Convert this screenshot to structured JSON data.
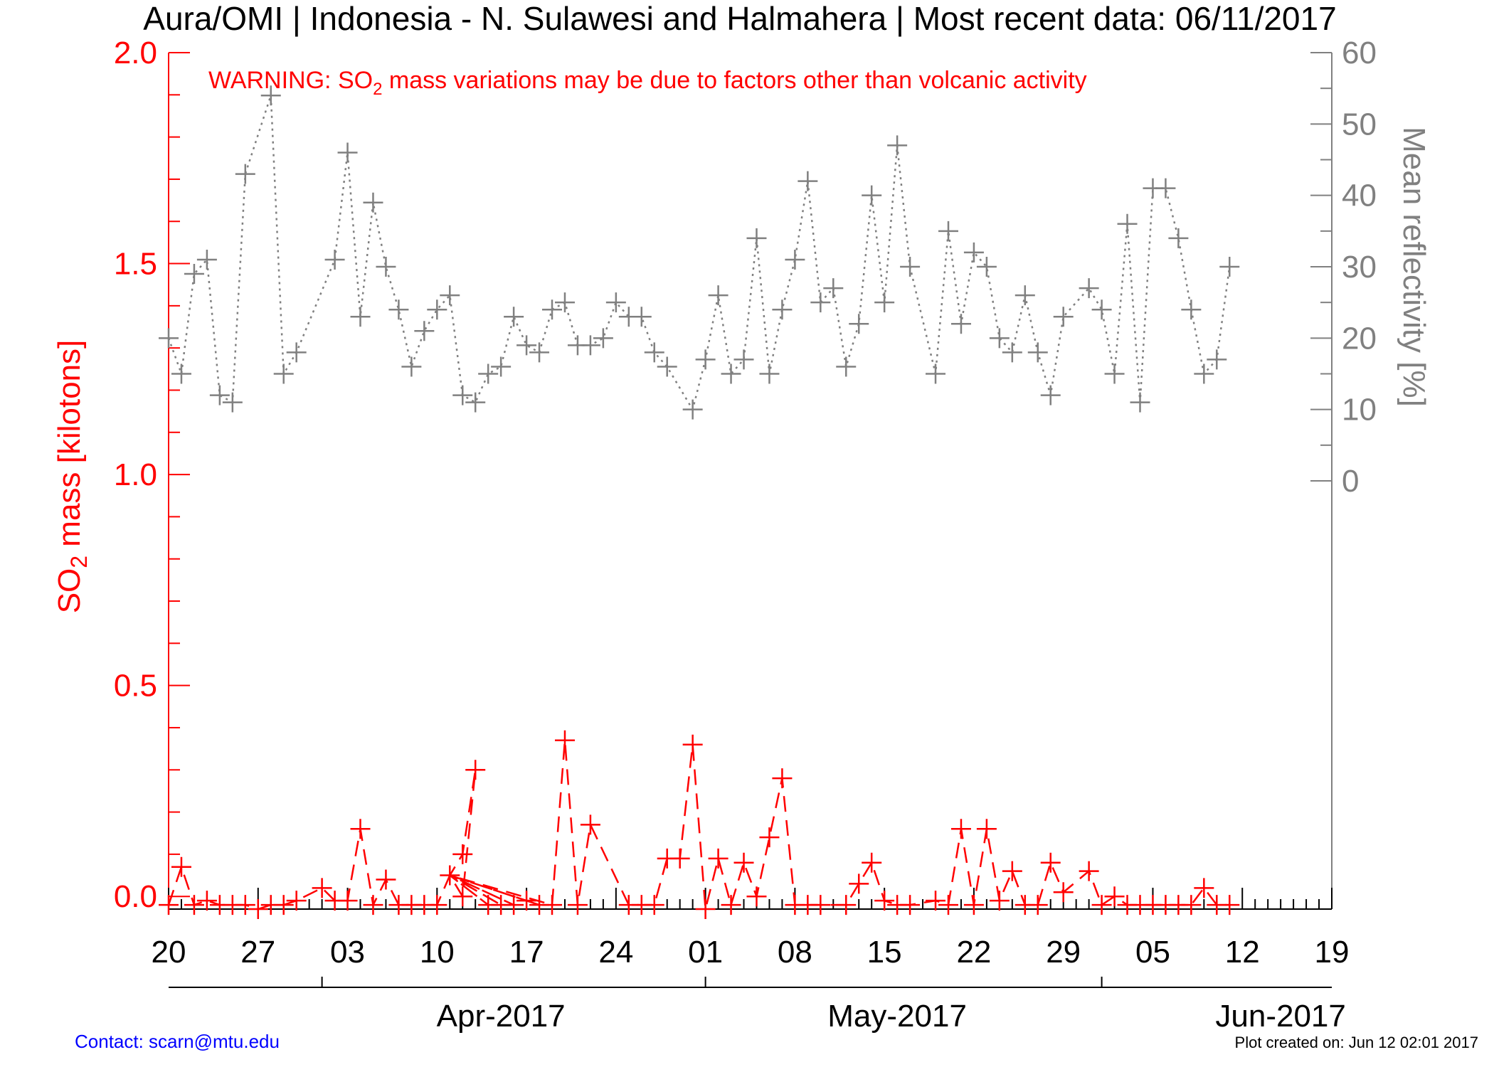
{
  "header": {
    "title": "Aura/OMI | Indonesia - N. Sulawesi and Halmahera | Most recent data: 06/11/2017"
  },
  "warning": {
    "prefix": "WARNING: SO",
    "subscript": "2",
    "suffix": " mass variations may be due to factors other than volcanic activity"
  },
  "footer": {
    "contact": "Contact: scarn@mtu.edu",
    "created": "Plot created on: Jun 12 02:01 2017"
  },
  "colors": {
    "so2": "#ff0000",
    "reflectivity": "#808080",
    "axis": "#000000",
    "contact": "#0000ff"
  },
  "chart_data": {
    "type": "line",
    "x_domain": [
      "2017-03-20",
      "2017-06-19"
    ],
    "x_ticks": [
      "20",
      "27",
      "03",
      "10",
      "17",
      "24",
      "01",
      "08",
      "15",
      "22",
      "29",
      "05",
      "12",
      "19"
    ],
    "x_tick_dates": [
      "2017-03-20",
      "2017-03-27",
      "2017-04-03",
      "2017-04-10",
      "2017-04-17",
      "2017-04-24",
      "2017-05-01",
      "2017-05-08",
      "2017-05-15",
      "2017-05-22",
      "2017-05-29",
      "2017-06-05",
      "2017-06-12",
      "2017-06-19"
    ],
    "months": [
      {
        "label": "Apr-2017",
        "start": "2017-04-01",
        "center": "2017-04-15"
      },
      {
        "label": "May-2017",
        "start": "2017-05-01",
        "center": "2017-05-16"
      },
      {
        "label": "Jun-2017",
        "start": "2017-06-01",
        "center": "2017-06-15"
      }
    ],
    "y_left": {
      "label_prefix": "SO",
      "label_subscript": "2",
      "label_suffix": " mass [kilotons]",
      "range": [
        -0.03,
        2.0
      ],
      "ticks": [
        "0.0",
        "0.5",
        "1.0",
        "1.5",
        "2.0"
      ],
      "tick_values": [
        0.0,
        0.5,
        1.0,
        1.5,
        2.0
      ],
      "minor_step": 0.1
    },
    "y_right": {
      "label": "Mean reflectivity [%]",
      "range": [
        -60,
        60
      ],
      "ticks": [
        "0",
        "10",
        "20",
        "30",
        "40",
        "50",
        "60"
      ],
      "tick_values": [
        0,
        10,
        20,
        30,
        40,
        50,
        60
      ]
    },
    "series": [
      {
        "name": "SO2 mass",
        "axis": "left",
        "style": "dashed",
        "points": [
          [
            "2017-03-20",
            -0.02
          ],
          [
            "2017-03-21",
            0.07
          ],
          [
            "2017-03-22",
            -0.02
          ],
          [
            "2017-03-23",
            -0.01
          ],
          [
            "2017-03-24",
            -0.02
          ],
          [
            "2017-03-25",
            -0.02
          ],
          [
            "2017-03-26",
            -0.02
          ],
          [
            "2017-03-27",
            -0.03
          ],
          [
            "2017-03-28",
            -0.02
          ],
          [
            "2017-03-29",
            -0.02
          ],
          [
            "2017-03-30",
            -0.01
          ],
          [
            "2017-04-01",
            0.02
          ],
          [
            "2017-04-02",
            -0.01
          ],
          [
            "2017-04-03",
            -0.01
          ],
          [
            "2017-04-04",
            0.16
          ],
          [
            "2017-04-05",
            -0.02
          ],
          [
            "2017-04-06",
            0.04
          ],
          [
            "2017-04-07",
            -0.02
          ],
          [
            "2017-04-08",
            -0.02
          ],
          [
            "2017-04-09",
            -0.02
          ],
          [
            "2017-04-10",
            -0.02
          ],
          [
            "2017-04-11",
            0.05
          ],
          [
            "2017-04-12",
            0.0
          ],
          [
            "2017-04-13",
            0.3
          ],
          [
            "2017-04-12",
            0.1
          ],
          [
            "2017-04-11",
            0.05
          ],
          [
            "2017-04-14",
            -0.02
          ],
          [
            "2017-04-11",
            0.05
          ],
          [
            "2017-04-15",
            -0.02
          ],
          [
            "2017-04-11",
            0.05
          ],
          [
            "2017-04-16",
            -0.02
          ],
          [
            "2017-04-11",
            0.05
          ],
          [
            "2017-04-17",
            -0.01
          ],
          [
            "2017-04-11",
            0.05
          ],
          [
            "2017-04-18",
            -0.02
          ],
          [
            "2017-04-11",
            0.05
          ],
          [
            "2017-04-19",
            -0.02
          ],
          [
            "2017-04-20",
            0.37
          ],
          [
            "2017-04-21",
            -0.02
          ],
          [
            "2017-04-22",
            0.17
          ],
          [
            "2017-04-25",
            -0.02
          ],
          [
            "2017-04-26",
            -0.02
          ],
          [
            "2017-04-27",
            -0.02
          ],
          [
            "2017-04-28",
            0.09
          ],
          [
            "2017-04-29",
            0.09
          ],
          [
            "2017-04-30",
            0.36
          ],
          [
            "2017-05-01",
            -0.03
          ],
          [
            "2017-05-02",
            0.09
          ],
          [
            "2017-05-03",
            -0.02
          ],
          [
            "2017-05-04",
            0.08
          ],
          [
            "2017-05-05",
            0.0
          ],
          [
            "2017-05-06",
            0.14
          ],
          [
            "2017-05-07",
            0.28
          ],
          [
            "2017-05-08",
            -0.02
          ],
          [
            "2017-05-09",
            -0.02
          ],
          [
            "2017-05-10",
            -0.02
          ],
          [
            "2017-05-12",
            -0.02
          ],
          [
            "2017-05-13",
            0.03
          ],
          [
            "2017-05-14",
            0.08
          ],
          [
            "2017-05-15",
            -0.01
          ],
          [
            "2017-05-16",
            -0.02
          ],
          [
            "2017-05-17",
            -0.02
          ],
          [
            "2017-05-19",
            -0.01
          ],
          [
            "2017-05-20",
            -0.02
          ],
          [
            "2017-05-21",
            0.16
          ],
          [
            "2017-05-22",
            -0.02
          ],
          [
            "2017-05-23",
            0.16
          ],
          [
            "2017-05-24",
            -0.01
          ],
          [
            "2017-05-25",
            0.06
          ],
          [
            "2017-05-26",
            -0.02
          ],
          [
            "2017-05-27",
            -0.02
          ],
          [
            "2017-05-28",
            0.08
          ],
          [
            "2017-05-29",
            0.01
          ],
          [
            "2017-05-31",
            0.06
          ],
          [
            "2017-06-01",
            -0.02
          ],
          [
            "2017-06-02",
            0.0
          ],
          [
            "2017-06-03",
            -0.02
          ],
          [
            "2017-06-04",
            -0.02
          ],
          [
            "2017-06-05",
            -0.02
          ],
          [
            "2017-06-06",
            -0.02
          ],
          [
            "2017-06-07",
            -0.02
          ],
          [
            "2017-06-08",
            -0.02
          ],
          [
            "2017-06-09",
            0.02
          ],
          [
            "2017-06-10",
            -0.02
          ],
          [
            "2017-06-11",
            -0.02
          ]
        ]
      },
      {
        "name": "Mean reflectivity",
        "axis": "right",
        "style": "dotted",
        "points": [
          [
            "2017-03-20",
            20
          ],
          [
            "2017-03-21",
            15
          ],
          [
            "2017-03-22",
            29
          ],
          [
            "2017-03-23",
            31
          ],
          [
            "2017-03-24",
            12
          ],
          [
            "2017-03-25",
            11
          ],
          [
            "2017-03-26",
            43
          ],
          [
            "2017-03-28",
            54
          ],
          [
            "2017-03-29",
            15
          ],
          [
            "2017-03-30",
            18
          ],
          [
            "2017-04-02",
            31
          ],
          [
            "2017-04-03",
            46
          ],
          [
            "2017-04-04",
            23
          ],
          [
            "2017-04-05",
            39
          ],
          [
            "2017-04-06",
            30
          ],
          [
            "2017-04-07",
            24
          ],
          [
            "2017-04-08",
            16
          ],
          [
            "2017-04-09",
            21
          ],
          [
            "2017-04-10",
            24
          ],
          [
            "2017-04-11",
            26
          ],
          [
            "2017-04-12",
            12
          ],
          [
            "2017-04-13",
            11
          ],
          [
            "2017-04-14",
            15
          ],
          [
            "2017-04-15",
            16
          ],
          [
            "2017-04-16",
            23
          ],
          [
            "2017-04-17",
            19
          ],
          [
            "2017-04-18",
            18
          ],
          [
            "2017-04-19",
            24
          ],
          [
            "2017-04-20",
            25
          ],
          [
            "2017-04-21",
            19
          ],
          [
            "2017-04-22",
            19
          ],
          [
            "2017-04-23",
            20
          ],
          [
            "2017-04-24",
            25
          ],
          [
            "2017-04-25",
            23
          ],
          [
            "2017-04-26",
            23
          ],
          [
            "2017-04-27",
            18
          ],
          [
            "2017-04-28",
            16
          ],
          [
            "2017-04-30",
            10
          ],
          [
            "2017-05-01",
            17
          ],
          [
            "2017-05-02",
            26
          ],
          [
            "2017-05-03",
            15
          ],
          [
            "2017-05-04",
            17
          ],
          [
            "2017-05-05",
            34
          ],
          [
            "2017-05-06",
            15
          ],
          [
            "2017-05-07",
            24
          ],
          [
            "2017-05-08",
            31
          ],
          [
            "2017-05-09",
            42
          ],
          [
            "2017-05-10",
            25
          ],
          [
            "2017-05-11",
            27
          ],
          [
            "2017-05-12",
            16
          ],
          [
            "2017-05-13",
            22
          ],
          [
            "2017-05-14",
            40
          ],
          [
            "2017-05-15",
            25
          ],
          [
            "2017-05-16",
            47
          ],
          [
            "2017-05-17",
            30
          ],
          [
            "2017-05-19",
            15
          ],
          [
            "2017-05-20",
            35
          ],
          [
            "2017-05-21",
            22
          ],
          [
            "2017-05-22",
            32
          ],
          [
            "2017-05-23",
            30
          ],
          [
            "2017-05-24",
            20
          ],
          [
            "2017-05-25",
            18
          ],
          [
            "2017-05-26",
            26
          ],
          [
            "2017-05-27",
            18
          ],
          [
            "2017-05-28",
            12
          ],
          [
            "2017-05-29",
            23
          ],
          [
            "2017-05-31",
            27
          ],
          [
            "2017-06-01",
            24
          ],
          [
            "2017-06-02",
            15
          ],
          [
            "2017-06-03",
            36
          ],
          [
            "2017-06-04",
            11
          ],
          [
            "2017-06-05",
            41
          ],
          [
            "2017-06-06",
            41
          ],
          [
            "2017-06-07",
            34
          ],
          [
            "2017-06-08",
            24
          ],
          [
            "2017-06-09",
            15
          ],
          [
            "2017-06-10",
            17
          ],
          [
            "2017-06-11",
            30
          ]
        ]
      }
    ]
  }
}
